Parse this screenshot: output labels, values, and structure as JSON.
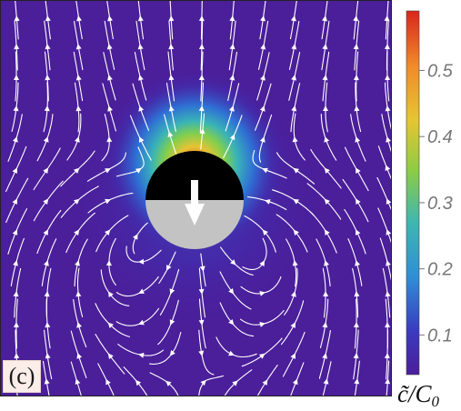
{
  "panel_label": "(c)",
  "colorbar": {
    "ticks": [
      "0.1",
      "0.2",
      "0.3",
      "0.4",
      "0.5"
    ],
    "tick_values": [
      0.1,
      0.2,
      0.3,
      0.4,
      0.5
    ],
    "range": [
      0.04,
      0.59
    ],
    "label_tilde_c": "c̃",
    "label_slash": "/",
    "label_C": "C",
    "label_sub": "0",
    "colors": [
      "#4b1e9a",
      "#3a46c8",
      "#2f8fd6",
      "#3fb7b0",
      "#8ccc45",
      "#e6c532",
      "#f08a2a",
      "#d8261c"
    ]
  },
  "particle": {
    "top_color": "#000000",
    "bottom_color": "#c3c3c3",
    "arrow_color": "#ffffff"
  },
  "field": {
    "background": "#4b1e9a",
    "streamline_color": "#ffffff"
  }
}
